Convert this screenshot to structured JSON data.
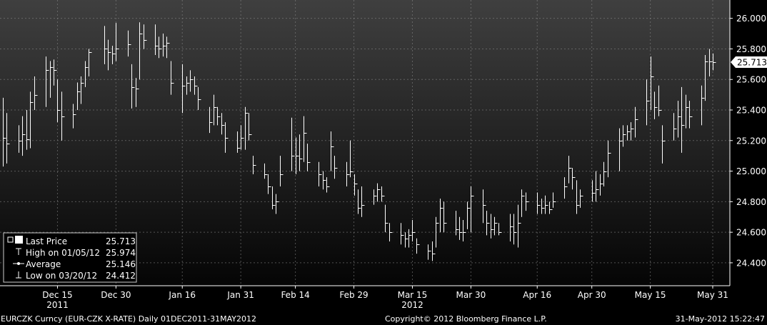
{
  "chart_data": {
    "type": "bar",
    "subtype": "ohlc",
    "ylim": [
      24.25,
      26.12
    ],
    "y_ticks": [
      "26.000",
      "25.800",
      "25.600",
      "25.400",
      "25.200",
      "25.000",
      "24.800",
      "24.600",
      "24.400"
    ],
    "y_tick_values": [
      26.0,
      25.8,
      25.6,
      25.4,
      25.2,
      25.0,
      24.8,
      24.6,
      24.4
    ],
    "x_ticks": [
      {
        "label": "Dec 15",
        "date": "2011-12-15"
      },
      {
        "label": "Dec 30",
        "date": "2011-12-30"
      },
      {
        "label": "Jan 16",
        "date": "2012-01-16"
      },
      {
        "label": "Jan 31",
        "date": "2012-01-31"
      },
      {
        "label": "Feb 14",
        "date": "2012-02-14"
      },
      {
        "label": "Feb 29",
        "date": "2012-02-29"
      },
      {
        "label": "Mar 15",
        "date": "2012-03-15"
      },
      {
        "label": "Mar 30",
        "date": "2012-03-30"
      },
      {
        "label": "Apr 16",
        "date": "2012-04-16"
      },
      {
        "label": "Apr 30",
        "date": "2012-04-30"
      },
      {
        "label": "May 15",
        "date": "2012-05-15"
      },
      {
        "label": "May 31",
        "date": "2012-05-31"
      }
    ],
    "year_labels": [
      {
        "label": "2011",
        "date": "2011-12-15"
      },
      {
        "label": "2012",
        "date": "2012-03-15"
      }
    ],
    "last_price_tag": "25.713",
    "grid": true,
    "legend_position": "bottom-left",
    "legend": [
      {
        "label": "Last Price",
        "value": "25.713"
      },
      {
        "label": "High on 01/05/12",
        "value": "25.974"
      },
      {
        "label": "Average",
        "value": "25.146"
      },
      {
        "label": "Low on 03/20/12",
        "value": "24.412"
      }
    ],
    "bars": [
      {
        "date": "2011-12-01",
        "high": 25.48,
        "low": 25.03,
        "close": 25.22
      },
      {
        "date": "2011-12-02",
        "high": 25.38,
        "low": 25.05,
        "close": 25.18
      },
      {
        "date": "2011-12-05",
        "high": 25.3,
        "low": 25.12,
        "close": 25.2
      },
      {
        "date": "2011-12-06",
        "high": 25.36,
        "low": 25.1,
        "close": 25.24
      },
      {
        "date": "2011-12-07",
        "high": 25.4,
        "low": 25.14,
        "close": 25.21
      },
      {
        "date": "2011-12-08",
        "high": 25.52,
        "low": 25.15,
        "close": 25.45
      },
      {
        "date": "2011-12-09",
        "high": 25.62,
        "low": 25.4,
        "close": 25.5
      },
      {
        "date": "2011-12-12",
        "high": 25.75,
        "low": 25.42,
        "close": 25.66
      },
      {
        "date": "2011-12-13",
        "high": 25.72,
        "low": 25.48,
        "close": 25.68
      },
      {
        "date": "2011-12-14",
        "high": 25.73,
        "low": 25.56,
        "close": 25.66
      },
      {
        "date": "2011-12-15",
        "high": 25.6,
        "low": 25.32,
        "close": 25.4
      },
      {
        "date": "2011-12-16",
        "high": 25.52,
        "low": 25.2,
        "close": 25.36
      },
      {
        "date": "2011-12-19",
        "high": 25.44,
        "low": 25.28,
        "close": 25.37
      },
      {
        "date": "2011-12-20",
        "high": 25.58,
        "low": 25.4,
        "close": 25.52
      },
      {
        "date": "2011-12-21",
        "high": 25.62,
        "low": 25.44,
        "close": 25.58
      },
      {
        "date": "2011-12-22",
        "high": 25.72,
        "low": 25.55,
        "close": 25.68
      },
      {
        "date": "2011-12-23",
        "high": 25.8,
        "low": 25.62,
        "close": 25.78
      },
      {
        "date": "2011-12-27",
        "high": 25.95,
        "low": 25.7,
        "close": 25.8
      },
      {
        "date": "2011-12-28",
        "high": 25.86,
        "low": 25.66,
        "close": 25.78
      },
      {
        "date": "2011-12-29",
        "high": 25.82,
        "low": 25.7,
        "close": 25.77
      },
      {
        "date": "2011-12-30",
        "high": 25.97,
        "low": 25.72,
        "close": 25.8
      },
      {
        "date": "2012-01-02",
        "high": 25.92,
        "low": 25.75,
        "close": 25.83
      },
      {
        "date": "2012-01-03",
        "high": 25.7,
        "low": 25.41,
        "close": 25.55
      },
      {
        "date": "2012-01-04",
        "high": 25.61,
        "low": 25.42,
        "close": 25.54
      },
      {
        "date": "2012-01-05",
        "high": 25.974,
        "low": 25.6,
        "close": 25.9
      },
      {
        "date": "2012-01-06",
        "high": 25.96,
        "low": 25.8,
        "close": 25.86
      },
      {
        "date": "2012-01-09",
        "high": 25.96,
        "low": 25.76,
        "close": 25.82
      },
      {
        "date": "2012-01-10",
        "high": 25.88,
        "low": 25.74,
        "close": 25.8
      },
      {
        "date": "2012-01-11",
        "high": 25.9,
        "low": 25.75,
        "close": 25.82
      },
      {
        "date": "2012-01-12",
        "high": 25.88,
        "low": 25.74,
        "close": 25.84
      },
      {
        "date": "2012-01-13",
        "high": 25.72,
        "low": 25.5,
        "close": 25.58
      },
      {
        "date": "2012-01-16",
        "high": 25.7,
        "low": 25.38,
        "close": 25.56
      },
      {
        "date": "2012-01-17",
        "high": 25.62,
        "low": 25.5,
        "close": 25.58
      },
      {
        "date": "2012-01-18",
        "high": 25.66,
        "low": 25.52,
        "close": 25.6
      },
      {
        "date": "2012-01-19",
        "high": 25.62,
        "low": 25.5,
        "close": 25.56
      },
      {
        "date": "2012-01-20",
        "high": 25.55,
        "low": 25.4,
        "close": 25.47
      },
      {
        "date": "2012-01-23",
        "high": 25.42,
        "low": 25.25,
        "close": 25.32
      },
      {
        "date": "2012-01-24",
        "high": 25.5,
        "low": 25.3,
        "close": 25.42
      },
      {
        "date": "2012-01-25",
        "high": 25.42,
        "low": 25.3,
        "close": 25.36
      },
      {
        "date": "2012-01-26",
        "high": 25.38,
        "low": 25.24,
        "close": 25.3
      },
      {
        "date": "2012-01-27",
        "high": 25.32,
        "low": 25.12,
        "close": 25.22
      },
      {
        "date": "2012-01-30",
        "high": 25.26,
        "low": 25.12,
        "close": 25.15
      },
      {
        "date": "2012-01-31",
        "high": 25.3,
        "low": 25.14,
        "close": 25.22
      },
      {
        "date": "2012-02-01",
        "high": 25.42,
        "low": 25.14,
        "close": 25.38
      },
      {
        "date": "2012-02-02",
        "high": 25.38,
        "low": 25.2,
        "close": 25.24
      },
      {
        "date": "2012-02-03",
        "high": 25.1,
        "low": 24.98,
        "close": 25.04
      },
      {
        "date": "2012-02-06",
        "high": 25.05,
        "low": 24.95,
        "close": 24.98
      },
      {
        "date": "2012-02-07",
        "high": 24.98,
        "low": 24.85,
        "close": 24.9
      },
      {
        "date": "2012-02-08",
        "high": 24.9,
        "low": 24.75,
        "close": 24.78
      },
      {
        "date": "2012-02-09",
        "high": 24.85,
        "low": 24.72,
        "close": 24.8
      },
      {
        "date": "2012-02-10",
        "high": 25.1,
        "low": 24.9,
        "close": 24.98
      },
      {
        "date": "2012-02-13",
        "high": 25.35,
        "low": 25.0,
        "close": 25.1
      },
      {
        "date": "2012-02-14",
        "high": 25.22,
        "low": 24.98,
        "close": 25.1
      },
      {
        "date": "2012-02-15",
        "high": 25.24,
        "low": 25.0,
        "close": 25.08
      },
      {
        "date": "2012-02-16",
        "high": 25.36,
        "low": 25.06,
        "close": 25.25
      },
      {
        "date": "2012-02-17",
        "high": 25.18,
        "low": 25.0,
        "close": 25.06
      },
      {
        "date": "2012-02-20",
        "high": 25.06,
        "low": 24.9,
        "close": 24.98
      },
      {
        "date": "2012-02-21",
        "high": 25.0,
        "low": 24.88,
        "close": 24.94
      },
      {
        "date": "2012-02-22",
        "high": 24.96,
        "low": 24.86,
        "close": 24.9
      },
      {
        "date": "2012-02-23",
        "high": 25.26,
        "low": 25.0,
        "close": 25.16
      },
      {
        "date": "2012-02-24",
        "high": 25.1,
        "low": 24.95,
        "close": 25.02
      },
      {
        "date": "2012-02-27",
        "high": 25.06,
        "low": 24.9,
        "close": 24.98
      },
      {
        "date": "2012-02-28",
        "high": 25.2,
        "low": 24.96,
        "close": 25.0
      },
      {
        "date": "2012-02-29",
        "high": 24.98,
        "low": 24.84,
        "close": 24.92
      },
      {
        "date": "2012-03-01",
        "high": 24.88,
        "low": 24.72,
        "close": 24.76
      },
      {
        "date": "2012-03-02",
        "high": 24.9,
        "low": 24.7,
        "close": 24.78
      },
      {
        "date": "2012-03-05",
        "high": 24.88,
        "low": 24.78,
        "close": 24.84
      },
      {
        "date": "2012-03-06",
        "high": 24.92,
        "low": 24.8,
        "close": 24.88
      },
      {
        "date": "2012-03-07",
        "high": 24.9,
        "low": 24.8,
        "close": 24.84
      },
      {
        "date": "2012-03-08",
        "high": 24.78,
        "low": 24.6,
        "close": 24.66
      },
      {
        "date": "2012-03-09",
        "high": 24.66,
        "low": 24.54,
        "close": 24.6
      },
      {
        "date": "2012-03-12",
        "high": 24.66,
        "low": 24.52,
        "close": 24.58
      },
      {
        "date": "2012-03-13",
        "high": 24.6,
        "low": 24.5,
        "close": 24.56
      },
      {
        "date": "2012-03-14",
        "high": 24.62,
        "low": 24.5,
        "close": 24.58
      },
      {
        "date": "2012-03-15",
        "high": 24.68,
        "low": 24.54,
        "close": 24.6
      },
      {
        "date": "2012-03-16",
        "high": 24.56,
        "low": 24.46,
        "close": 24.52
      },
      {
        "date": "2012-03-19",
        "high": 24.52,
        "low": 24.42,
        "close": 24.48
      },
      {
        "date": "2012-03-20",
        "high": 24.54,
        "low": 24.412,
        "close": 24.46
      },
      {
        "date": "2012-03-21",
        "high": 24.7,
        "low": 24.5,
        "close": 24.66
      },
      {
        "date": "2012-03-22",
        "high": 24.82,
        "low": 24.6,
        "close": 24.76
      },
      {
        "date": "2012-03-23",
        "high": 24.8,
        "low": 24.6,
        "close": 24.66
      },
      {
        "date": "2012-03-26",
        "high": 24.74,
        "low": 24.58,
        "close": 24.62
      },
      {
        "date": "2012-03-27",
        "high": 24.7,
        "low": 24.55,
        "close": 24.6
      },
      {
        "date": "2012-03-28",
        "high": 24.68,
        "low": 24.54,
        "close": 24.6
      },
      {
        "date": "2012-03-29",
        "high": 24.8,
        "low": 24.62,
        "close": 24.76
      },
      {
        "date": "2012-03-30",
        "high": 24.9,
        "low": 24.6,
        "close": 24.84
      },
      {
        "date": "2012-04-02",
        "high": 24.88,
        "low": 24.66,
        "close": 24.78
      },
      {
        "date": "2012-04-03",
        "high": 24.74,
        "low": 24.58,
        "close": 24.66
      },
      {
        "date": "2012-04-04",
        "high": 24.72,
        "low": 24.56,
        "close": 24.62
      },
      {
        "date": "2012-04-05",
        "high": 24.7,
        "low": 24.58,
        "close": 24.66
      },
      {
        "date": "2012-04-06",
        "high": 24.66,
        "low": 24.58,
        "close": 24.6
      },
      {
        "date": "2012-04-09",
        "high": 24.72,
        "low": 24.54,
        "close": 24.64
      },
      {
        "date": "2012-04-10",
        "high": 24.72,
        "low": 24.52,
        "close": 24.6
      },
      {
        "date": "2012-04-11",
        "high": 24.78,
        "low": 24.5,
        "close": 24.66
      },
      {
        "date": "2012-04-12",
        "high": 24.88,
        "low": 24.7,
        "close": 24.84
      },
      {
        "date": "2012-04-13",
        "high": 24.86,
        "low": 24.74,
        "close": 24.8
      },
      {
        "date": "2012-04-16",
        "high": 24.86,
        "low": 24.72,
        "close": 24.78
      },
      {
        "date": "2012-04-17",
        "high": 24.82,
        "low": 24.72,
        "close": 24.76
      },
      {
        "date": "2012-04-18",
        "high": 24.84,
        "low": 24.72,
        "close": 24.78
      },
      {
        "date": "2012-04-19",
        "high": 24.8,
        "low": 24.72,
        "close": 24.75
      },
      {
        "date": "2012-04-20",
        "high": 24.86,
        "low": 24.76,
        "close": 24.8
      },
      {
        "date": "2012-04-23",
        "high": 24.96,
        "low": 24.82,
        "close": 24.9
      },
      {
        "date": "2012-04-24",
        "high": 25.1,
        "low": 24.92,
        "close": 25.02
      },
      {
        "date": "2012-04-25",
        "high": 25.02,
        "low": 24.88,
        "close": 24.96
      },
      {
        "date": "2012-04-26",
        "high": 24.94,
        "low": 24.72,
        "close": 24.78
      },
      {
        "date": "2012-04-27",
        "high": 24.88,
        "low": 24.76,
        "close": 24.84
      },
      {
        "date": "2012-04-30",
        "high": 24.94,
        "low": 24.8,
        "close": 24.86
      },
      {
        "date": "2012-05-01",
        "high": 25.0,
        "low": 24.8,
        "close": 24.88
      },
      {
        "date": "2012-05-02",
        "high": 24.98,
        "low": 24.84,
        "close": 24.92
      },
      {
        "date": "2012-05-03",
        "high": 25.06,
        "low": 24.9,
        "close": 25.0
      },
      {
        "date": "2012-05-04",
        "high": 25.2,
        "low": 24.96,
        "close": 25.12
      },
      {
        "date": "2012-05-07",
        "high": 25.28,
        "low": 25.0,
        "close": 25.2
      },
      {
        "date": "2012-05-08",
        "high": 25.3,
        "low": 25.16,
        "close": 25.24
      },
      {
        "date": "2012-05-09",
        "high": 25.3,
        "low": 25.2,
        "close": 25.26
      },
      {
        "date": "2012-05-10",
        "high": 25.32,
        "low": 25.2,
        "close": 25.28
      },
      {
        "date": "2012-05-11",
        "high": 25.42,
        "low": 25.22,
        "close": 25.34
      },
      {
        "date": "2012-05-14",
        "high": 25.6,
        "low": 25.3,
        "close": 25.46
      },
      {
        "date": "2012-05-15",
        "high": 25.75,
        "low": 25.4,
        "close": 25.62
      },
      {
        "date": "2012-05-16",
        "high": 25.52,
        "low": 25.34,
        "close": 25.42
      },
      {
        "date": "2012-05-17",
        "high": 25.56,
        "low": 25.36,
        "close": 25.4
      },
      {
        "date": "2012-05-18",
        "high": 25.3,
        "low": 25.05,
        "close": 25.2
      },
      {
        "date": "2012-05-21",
        "high": 25.38,
        "low": 25.2,
        "close": 25.28
      },
      {
        "date": "2012-05-22",
        "high": 25.46,
        "low": 25.22,
        "close": 25.36
      },
      {
        "date": "2012-05-23",
        "high": 25.55,
        "low": 25.12,
        "close": 25.3
      },
      {
        "date": "2012-05-24",
        "high": 25.5,
        "low": 25.28,
        "close": 25.42
      },
      {
        "date": "2012-05-25",
        "high": 25.46,
        "low": 25.28,
        "close": 25.36
      },
      {
        "date": "2012-05-28",
        "high": 25.56,
        "low": 25.3,
        "close": 25.48
      },
      {
        "date": "2012-05-29",
        "high": 25.76,
        "low": 25.46,
        "close": 25.72
      },
      {
        "date": "2012-05-30",
        "high": 25.8,
        "low": 25.62,
        "close": 25.72
      },
      {
        "date": "2012-05-31",
        "high": 25.77,
        "low": 25.66,
        "close": 25.713
      }
    ]
  },
  "footer": {
    "ticker": "EURCZK Curncy (EUR-CZK X-RATE)  Daily 01DEC2011-31MAY2012",
    "copyright": "Copyright© 2012 Bloomberg Finance L.P.",
    "timestamp": "31-May-2012 15:22:47"
  },
  "colors": {
    "background_top": "#404040",
    "background_bottom": "#000000",
    "grid": "#8a8a8a",
    "bar": "#ffffff",
    "text": "#ffffff"
  }
}
